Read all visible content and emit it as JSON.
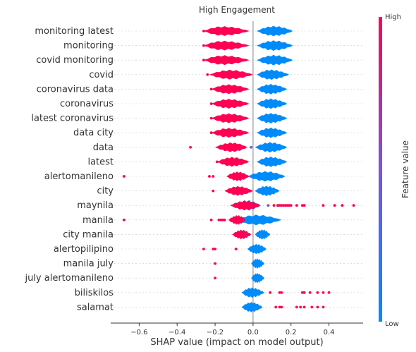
{
  "chart_data": {
    "type": "violin",
    "title": "High Engagement",
    "xlabel": "SHAP value (impact on model output)",
    "ylabel": "",
    "xlim": [
      -0.75,
      0.58
    ],
    "xticks": [
      -0.6,
      -0.4,
      -0.2,
      0.0,
      0.2,
      0.4
    ],
    "xtick_labels": [
      "−0.6",
      "−0.4",
      "−0.2",
      "0.0",
      "0.2",
      "0.4"
    ],
    "features": [
      {
        "name": "monitoring latest",
        "high_range": [
          -0.26,
          -0.02
        ],
        "high_peak": -0.16,
        "low_range": [
          0.02,
          0.21
        ],
        "low_peak": 0.11,
        "outliers": [
          {
            "x": -0.26,
            "v": 1
          }
        ]
      },
      {
        "name": "monitoring",
        "high_range": [
          -0.26,
          -0.02
        ],
        "high_peak": -0.16,
        "low_range": [
          0.02,
          0.21
        ],
        "low_peak": 0.11,
        "outliers": [
          {
            "x": -0.26,
            "v": 1
          }
        ]
      },
      {
        "name": "covid monitoring",
        "high_range": [
          -0.26,
          -0.02
        ],
        "high_peak": -0.16,
        "low_range": [
          0.02,
          0.21
        ],
        "low_peak": 0.11,
        "outliers": [
          {
            "x": -0.26,
            "v": 1
          }
        ]
      },
      {
        "name": "covid",
        "high_range": [
          -0.23,
          0.0
        ],
        "high_peak": -0.12,
        "low_range": [
          0.02,
          0.19
        ],
        "low_peak": 0.09,
        "outliers": [
          {
            "x": -0.24,
            "v": 1
          }
        ]
      },
      {
        "name": "coronavirus data",
        "high_range": [
          -0.22,
          -0.02
        ],
        "high_peak": -0.13,
        "low_range": [
          0.02,
          0.18
        ],
        "low_peak": 0.09,
        "outliers": [
          {
            "x": -0.22,
            "v": 1
          }
        ]
      },
      {
        "name": "coronavirus",
        "high_range": [
          -0.22,
          -0.02
        ],
        "high_peak": -0.13,
        "low_range": [
          0.02,
          0.18
        ],
        "low_peak": 0.09,
        "outliers": [
          {
            "x": -0.22,
            "v": 1
          }
        ]
      },
      {
        "name": "latest coronavirus",
        "high_range": [
          -0.22,
          -0.02
        ],
        "high_peak": -0.13,
        "low_range": [
          0.02,
          0.18
        ],
        "low_peak": 0.09,
        "outliers": [
          {
            "x": -0.22,
            "v": 1
          }
        ]
      },
      {
        "name": "data city",
        "high_range": [
          -0.22,
          -0.02
        ],
        "high_peak": -0.13,
        "low_range": [
          0.02,
          0.18
        ],
        "low_peak": 0.09,
        "outliers": [
          {
            "x": -0.22,
            "v": 1
          }
        ]
      },
      {
        "name": "data",
        "high_range": [
          -0.2,
          -0.03
        ],
        "high_peak": -0.11,
        "low_range": [
          0.01,
          0.18
        ],
        "low_peak": 0.09,
        "outliers": [
          {
            "x": -0.33,
            "v": 1
          },
          {
            "x": -0.01,
            "v": 0.45
          }
        ]
      },
      {
        "name": "latest",
        "high_range": [
          -0.19,
          -0.02
        ],
        "high_peak": -0.11,
        "low_range": [
          0.02,
          0.18
        ],
        "low_peak": 0.09,
        "outliers": [
          {
            "x": -0.19,
            "v": 1
          }
        ]
      },
      {
        "name": "alertomanileno",
        "high_range": [
          -0.14,
          -0.02
        ],
        "high_peak": -0.08,
        "low_range": [
          -0.03,
          0.17
        ],
        "low_peak": 0.07,
        "outliers": [
          {
            "x": -0.68,
            "v": 1
          },
          {
            "x": -0.23,
            "v": 1
          },
          {
            "x": -0.21,
            "v": 1
          }
        ]
      },
      {
        "name": "city",
        "high_range": [
          -0.15,
          0.0
        ],
        "high_peak": -0.08,
        "low_range": [
          0.01,
          0.14
        ],
        "low_peak": 0.07,
        "outliers": [
          {
            "x": -0.21,
            "v": 1
          }
        ]
      },
      {
        "name": "maynila",
        "high_range": [
          -0.12,
          0.04
        ],
        "high_peak": -0.04,
        "low_range": [
          -0.12,
          0.04
        ],
        "low_peak": -0.03,
        "outliers": [
          {
            "x": 0.11,
            "v": 1
          },
          {
            "x": 0.13,
            "v": 1
          },
          {
            "x": 0.14,
            "v": 1
          },
          {
            "x": 0.15,
            "v": 1
          },
          {
            "x": 0.16,
            "v": 1
          },
          {
            "x": 0.17,
            "v": 1
          },
          {
            "x": 0.18,
            "v": 1
          },
          {
            "x": 0.19,
            "v": 1
          },
          {
            "x": 0.2,
            "v": 1
          },
          {
            "x": 0.23,
            "v": 1
          },
          {
            "x": 0.26,
            "v": 1
          },
          {
            "x": 0.27,
            "v": 1
          },
          {
            "x": 0.37,
            "v": 1
          },
          {
            "x": 0.43,
            "v": 1
          },
          {
            "x": 0.47,
            "v": 1
          },
          {
            "x": 0.53,
            "v": 1
          },
          {
            "x": 0.08,
            "v": 0.5
          }
        ]
      },
      {
        "name": "manila",
        "high_range": [
          -0.13,
          -0.04
        ],
        "high_peak": -0.08,
        "low_range": [
          -0.1,
          0.15
        ],
        "low_peak": 0.02,
        "outliers": [
          {
            "x": -0.68,
            "v": 1
          },
          {
            "x": -0.22,
            "v": 1
          },
          {
            "x": -0.18,
            "v": 1
          },
          {
            "x": -0.17,
            "v": 1
          },
          {
            "x": -0.16,
            "v": 1
          },
          {
            "x": -0.15,
            "v": 1
          }
        ]
      },
      {
        "name": "city manila",
        "high_range": [
          -0.11,
          -0.01
        ],
        "high_peak": -0.06,
        "low_range": [
          0.01,
          0.09
        ],
        "low_peak": 0.05,
        "outliers": [
          {
            "x": -0.04,
            "v": 0.85
          }
        ]
      },
      {
        "name": "alertopilipino",
        "high_range": [
          -0.01,
          -0.01
        ],
        "high_peak": -0.01,
        "low_range": [
          -0.03,
          0.07
        ],
        "low_peak": 0.02,
        "outliers": [
          {
            "x": -0.26,
            "v": 1
          },
          {
            "x": -0.21,
            "v": 1
          },
          {
            "x": -0.2,
            "v": 1
          },
          {
            "x": -0.09,
            "v": 1
          }
        ]
      },
      {
        "name": "manila july",
        "high_range": [
          0.0,
          0.0
        ],
        "high_peak": 0.0,
        "low_range": [
          -0.01,
          0.06
        ],
        "low_peak": 0.02,
        "outliers": [
          {
            "x": -0.2,
            "v": 1
          }
        ]
      },
      {
        "name": "july alertomanileno",
        "high_range": [
          0.0,
          0.0
        ],
        "high_peak": 0.0,
        "low_range": [
          -0.01,
          0.06
        ],
        "low_peak": 0.02,
        "outliers": [
          {
            "x": -0.2,
            "v": 1
          }
        ]
      },
      {
        "name": "biliskilos",
        "high_range": [
          0.0,
          0.0
        ],
        "high_peak": 0.0,
        "low_range": [
          -0.06,
          0.06
        ],
        "low_peak": -0.01,
        "outliers": [
          {
            "x": 0.09,
            "v": 1
          },
          {
            "x": 0.14,
            "v": 1
          },
          {
            "x": 0.15,
            "v": 1
          },
          {
            "x": 0.26,
            "v": 1
          },
          {
            "x": 0.27,
            "v": 1
          },
          {
            "x": 0.3,
            "v": 1
          },
          {
            "x": 0.34,
            "v": 1
          },
          {
            "x": 0.37,
            "v": 1
          },
          {
            "x": 0.4,
            "v": 1
          }
        ]
      },
      {
        "name": "salamat",
        "high_range": [
          0.0,
          0.0
        ],
        "high_peak": 0.0,
        "low_range": [
          -0.06,
          0.05
        ],
        "low_peak": -0.01,
        "outliers": [
          {
            "x": 0.12,
            "v": 1
          },
          {
            "x": 0.14,
            "v": 1
          },
          {
            "x": 0.15,
            "v": 1
          },
          {
            "x": 0.23,
            "v": 1
          },
          {
            "x": 0.25,
            "v": 1
          },
          {
            "x": 0.27,
            "v": 1
          },
          {
            "x": 0.31,
            "v": 1
          },
          {
            "x": 0.34,
            "v": 1
          },
          {
            "x": 0.37,
            "v": 1
          }
        ]
      }
    ],
    "colorbar": {
      "label": "Feature value",
      "high_label": "High",
      "low_label": "Low",
      "high_color": "#ff0052",
      "low_color": "#008bfb"
    },
    "grid": false,
    "legend": "colorbar-right"
  }
}
